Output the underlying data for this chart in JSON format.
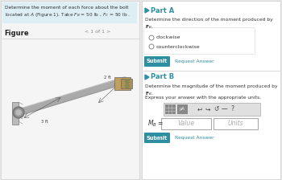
{
  "bg_color": "#e8e8e8",
  "left_panel_color": "#f5f5f5",
  "right_panel_color": "#ffffff",
  "teal_color": "#2e8fa3",
  "header_bg": "#ddeef5",
  "header_text_color": "#333333",
  "figure_label": "Figure",
  "figure_nav": "< 1 of 1 >",
  "part_a_label": "Part A",
  "part_a_question_line1": "Determine the direction of the moment produced by",
  "part_a_question_bold": "F",
  "part_a_question_sub": "B",
  "radio_option1": "clockwise",
  "radio_option2": "counterclockwise",
  "submit_text": "Submit",
  "request_answer_text": "Request Answer",
  "part_b_label": "Part B",
  "part_b_question_line1": "Determine the magnitude of the moment produced by",
  "part_b_subtext": "Express your answer with the appropriate units.",
  "mb_label": "M",
  "mb_sub": "B",
  "mb_eq": " =",
  "value_placeholder": "Value",
  "units_placeholder": "Units",
  "divider_color": "#cccccc",
  "input_bg": "#ffffff",
  "input_border": "#aaaaaa",
  "toolbar_bg": "#888888",
  "border_color": "#cccccc"
}
